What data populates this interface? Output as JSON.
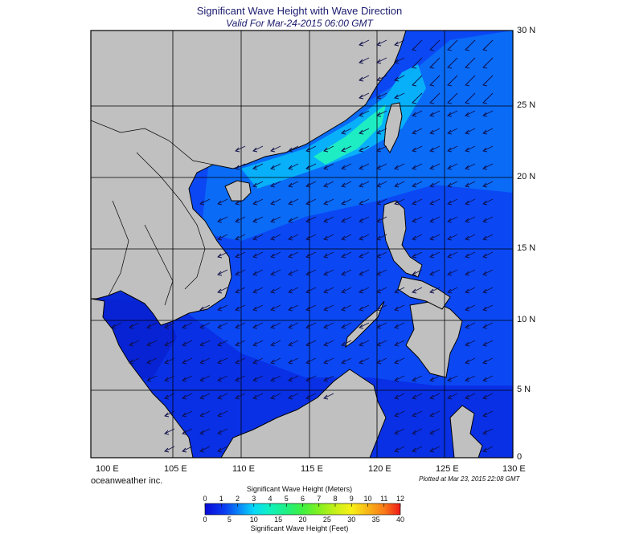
{
  "title": "Significant Wave Height with Wave Direction",
  "subtitle": "Valid For Mar-24-2015 06:00 GMT",
  "lat_labels": [
    "30 N",
    "25 N",
    "20 N",
    "15 N",
    "10 N",
    "5 N",
    "0"
  ],
  "lon_labels": [
    "100 E",
    "105 E",
    "110 E",
    "115 E",
    "120 E",
    "125 E",
    "130 E"
  ],
  "credit": "oceanweather inc.",
  "plotted": "Plotted at Mar 23, 2015 22:08 GMT",
  "colorbar": {
    "meters_title": "Significant Wave Height (Meters)",
    "feet_title": "Significant Wave Height (Feet)",
    "meters_ticks": [
      "0",
      "1",
      "2",
      "3",
      "4",
      "5",
      "6",
      "7",
      "8",
      "9",
      "10",
      "11",
      "12"
    ],
    "feet_ticks": [
      "0",
      "5",
      "10",
      "15",
      "20",
      "25",
      "30",
      "35",
      "40"
    ],
    "colors": [
      "#0a0ad8",
      "#0b3cf0",
      "#0a6cf8",
      "#08a8f8",
      "#08e0f0",
      "#10f0b8",
      "#38f070",
      "#78f040",
      "#c0f020",
      "#f8f018",
      "#f8b818",
      "#f87818",
      "#f01818"
    ]
  },
  "land_color": "#c0c0c0",
  "ocean_color": "#1040ff"
}
